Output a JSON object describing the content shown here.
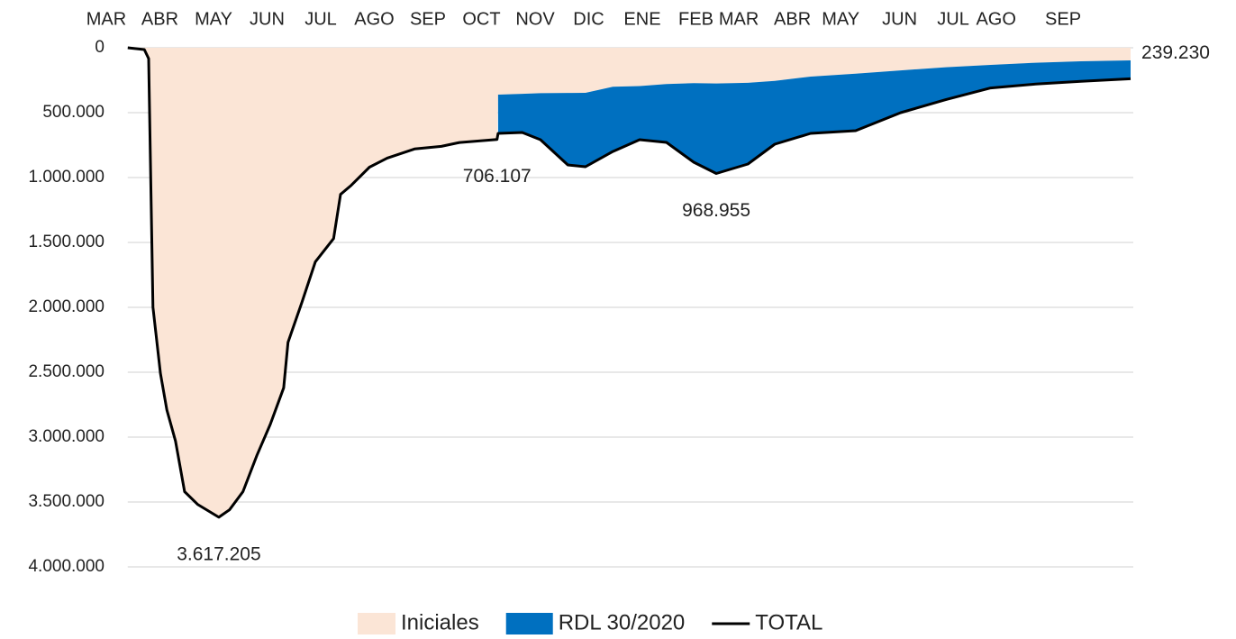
{
  "chart_data": {
    "type": "stacked_area_line",
    "x": [
      0.4,
      0.71,
      0.79,
      0.87,
      1.01,
      1.13,
      1.29,
      1.46,
      1.71,
      2.1,
      2.3,
      2.55,
      2.81,
      3.06,
      3.31,
      3.39,
      3.65,
      3.9,
      4.24,
      4.37,
      4.57,
      4.91,
      5.24,
      5.75,
      6.25,
      6.59,
      7.29,
      7.31,
      7.76,
      8.1,
      8.61,
      8.94,
      9.45,
      9.95,
      10.45,
      10.96,
      11.38,
      11.97,
      12.47,
      13.14,
      13.98,
      14.82,
      15.66,
      16.5,
      17.34,
      18.18,
      19.11
    ],
    "xlim": [
      0,
      19.16
    ],
    "xticks": [
      {
        "value": 0,
        "label": "MAR"
      },
      {
        "value": 1,
        "label": "ABR"
      },
      {
        "value": 2,
        "label": "MAY"
      },
      {
        "value": 3,
        "label": "JUN"
      },
      {
        "value": 4,
        "label": "JUL"
      },
      {
        "value": 5,
        "label": "AGO"
      },
      {
        "value": 6,
        "label": "SEP"
      },
      {
        "value": 7,
        "label": "OCT"
      },
      {
        "value": 8,
        "label": "NOV"
      },
      {
        "value": 9,
        "label": "DIC"
      },
      {
        "value": 10,
        "label": "ENE"
      },
      {
        "value": 11,
        "label": "FEB"
      },
      {
        "value": 11.8,
        "label": "MAR"
      },
      {
        "value": 12.8,
        "label": "ABR"
      },
      {
        "value": 13.7,
        "label": "MAY"
      },
      {
        "value": 14.8,
        "label": "JUN"
      },
      {
        "value": 15.8,
        "label": "JUL"
      },
      {
        "value": 16.6,
        "label": "AGO"
      },
      {
        "value": 17.85,
        "label": "SEP"
      }
    ],
    "ylim": [
      0,
      4000000
    ],
    "y_inverted": true,
    "yticks": [
      0,
      {
        "value": 500000,
        "label": "500.000"
      },
      {
        "value": 1000000,
        "label": "1.000.000"
      },
      {
        "value": 1500000,
        "label": "1.500.000"
      },
      {
        "value": 2000000,
        "label": "2.000.000"
      },
      {
        "value": 2500000,
        "label": "2.500.000"
      },
      {
        "value": 3000000,
        "label": "3.000.000"
      },
      {
        "value": 3500000,
        "label": "3.500.000"
      },
      {
        "value": 4000000,
        "label": "4.000.000"
      }
    ],
    "grid": true,
    "legend": "bottom",
    "series": [
      {
        "name": "Iniciales",
        "color": "#fbe5d6",
        "kind": "area",
        "values": [
          0,
          14000,
          83000,
          2000000,
          2510000,
          2790000,
          3030000,
          3420000,
          3520000,
          3617205,
          3560000,
          3420000,
          3140000,
          2900000,
          2620000,
          2270000,
          1960000,
          1650000,
          1470000,
          1130000,
          1060000,
          920000,
          850000,
          780000,
          760000,
          730000,
          706107,
          361000,
          355000,
          350000,
          348000,
          347000,
          300000,
          295000,
          280000,
          272000,
          275000,
          270000,
          255000,
          222000,
          200000,
          174000,
          150000,
          132000,
          115000,
          104000,
          97000
        ]
      },
      {
        "name": "RDL 30/2020",
        "color": "#0070c0",
        "kind": "area",
        "values": [
          null,
          null,
          null,
          null,
          null,
          null,
          null,
          null,
          null,
          null,
          null,
          null,
          null,
          null,
          null,
          null,
          null,
          null,
          null,
          null,
          null,
          null,
          null,
          null,
          null,
          null,
          null,
          299000,
          298000,
          358000,
          555000,
          570000,
          499000,
          413000,
          449000,
          610000,
          693955,
          626000,
          488000,
          438000,
          439000,
          326000,
          250000,
          178000,
          165000,
          154000,
          142230
        ]
      },
      {
        "name": "TOTAL",
        "color": "#000000",
        "kind": "line",
        "values": [
          0,
          14000,
          83000,
          2000000,
          2510000,
          2790000,
          3030000,
          3420000,
          3520000,
          3617205,
          3560000,
          3420000,
          3140000,
          2900000,
          2620000,
          2270000,
          1960000,
          1650000,
          1470000,
          1130000,
          1060000,
          920000,
          850000,
          780000,
          760000,
          730000,
          706107,
          660000,
          653000,
          708000,
          903000,
          917000,
          799000,
          708000,
          729000,
          882000,
          968955,
          896000,
          743000,
          660000,
          639000,
          500000,
          400000,
          310000,
          280000,
          258000,
          239230
        ],
        "value_labels": [
          null,
          null,
          null,
          null,
          null,
          null,
          null,
          null,
          null,
          "3.617.205",
          null,
          null,
          null,
          null,
          null,
          null,
          null,
          null,
          null,
          null,
          null,
          null,
          null,
          null,
          null,
          null,
          "706.107",
          null,
          null,
          null,
          null,
          null,
          null,
          null,
          null,
          null,
          "968.955",
          null,
          null,
          null,
          null,
          null,
          null,
          null,
          null,
          null,
          "239.230"
        ]
      }
    ]
  }
}
